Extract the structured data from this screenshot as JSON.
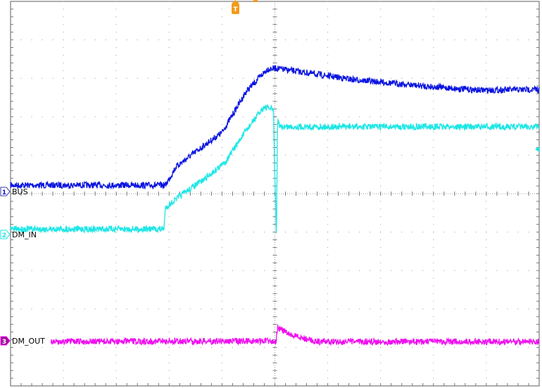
{
  "chart_data": {
    "type": "line",
    "title": "",
    "xlabel": "",
    "ylabel": "",
    "xlim_divisions": [
      0,
      10
    ],
    "ylim_divisions": [
      -5,
      5
    ],
    "grid": true,
    "trigger_marker": "T",
    "series": [
      {
        "name": "BUS",
        "channel": "1",
        "color": "#0a14e0",
        "x": [
          0,
          2.93,
          3.13,
          3.6,
          4.0,
          4.46,
          4.86,
          5.02,
          6.46,
          7.79,
          8.85,
          10
        ],
        "y": [
          0.22,
          0.22,
          0.7,
          1.19,
          1.59,
          2.66,
          3.24,
          3.26,
          2.97,
          2.8,
          2.69,
          2.71
        ]
      },
      {
        "name": "DM_IN",
        "channel": "2",
        "color": "#1ee6e6",
        "x": [
          0,
          2.9,
          2.93,
          3.26,
          3.66,
          4.06,
          4.46,
          4.79,
          4.97,
          5.03,
          5.05,
          5.09,
          10
        ],
        "y": [
          -0.92,
          -0.92,
          -0.37,
          0.0,
          0.37,
          0.82,
          1.65,
          2.25,
          2.2,
          -1.19,
          1.92,
          1.74,
          1.74
        ]
      },
      {
        "name": "DM_OUT",
        "channel": "3",
        "color": "#ee10ee",
        "x": [
          0.76,
          5.02,
          5.05,
          5.3,
          5.79,
          10
        ],
        "y": [
          -3.85,
          -3.83,
          -3.48,
          -3.68,
          -3.85,
          -3.85
        ]
      }
    ]
  }
}
